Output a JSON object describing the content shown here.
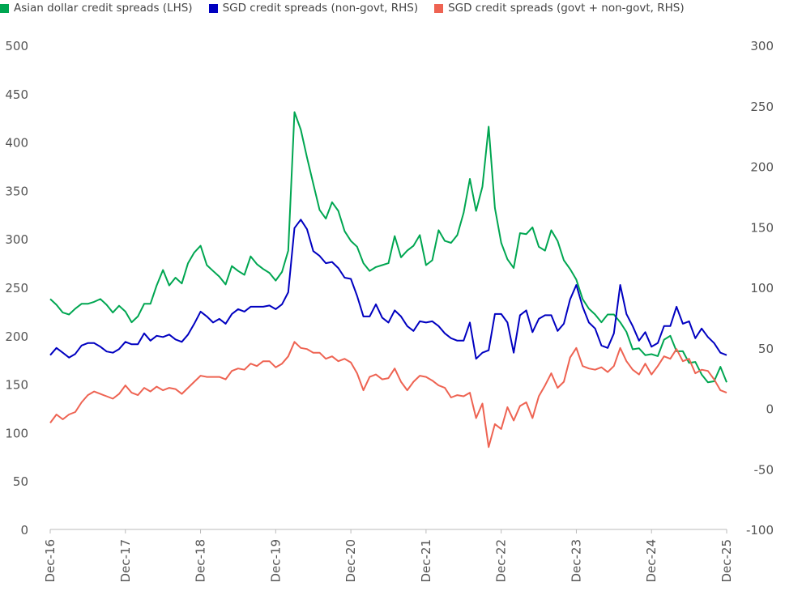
{
  "chart_data": {
    "type": "line",
    "title": "",
    "legend_position": "top",
    "grid": false,
    "y_left": {
      "range": [
        0,
        500
      ],
      "ticks": [
        0,
        50,
        100,
        150,
        200,
        250,
        300,
        350,
        400,
        450,
        500
      ]
    },
    "y_right": {
      "range": [
        -100,
        300
      ],
      "ticks": [
        -100,
        -50,
        0,
        50,
        100,
        150,
        200,
        250,
        300
      ]
    },
    "x_tick_labels": [
      "Dec-16",
      "Dec-17",
      "Dec-18",
      "Dec-19",
      "Dec-20",
      "Dec-21",
      "Dec-22",
      "Dec-23",
      "Dec-24",
      "Dec-25"
    ],
    "x": [
      "2016-12",
      "2017-01",
      "2017-02",
      "2017-03",
      "2017-04",
      "2017-05",
      "2017-06",
      "2017-07",
      "2017-08",
      "2017-09",
      "2017-10",
      "2017-11",
      "2017-12",
      "2018-01",
      "2018-02",
      "2018-03",
      "2018-04",
      "2018-05",
      "2018-06",
      "2018-07",
      "2018-08",
      "2018-09",
      "2018-10",
      "2018-11",
      "2018-12",
      "2019-01",
      "2019-02",
      "2019-03",
      "2019-04",
      "2019-05",
      "2019-06",
      "2019-07",
      "2019-08",
      "2019-09",
      "2019-10",
      "2019-11",
      "2019-12",
      "2020-01",
      "2020-02",
      "2020-03",
      "2020-04",
      "2020-05",
      "2020-06",
      "2020-07",
      "2020-08",
      "2020-09",
      "2020-10",
      "2020-11",
      "2020-12",
      "2021-01",
      "2021-02",
      "2021-03",
      "2021-04",
      "2021-05",
      "2021-06",
      "2021-07",
      "2021-08",
      "2021-09",
      "2021-10",
      "2021-11",
      "2021-12",
      "2022-01",
      "2022-02",
      "2022-03",
      "2022-04",
      "2022-05",
      "2022-06",
      "2022-07",
      "2022-08",
      "2022-09",
      "2022-10",
      "2022-11",
      "2022-12",
      "2023-01",
      "2023-02",
      "2023-03",
      "2023-04",
      "2023-05",
      "2023-06",
      "2023-07",
      "2023-08",
      "2023-09",
      "2023-10",
      "2023-11",
      "2023-12",
      "2024-01",
      "2024-02",
      "2024-03",
      "2024-04",
      "2024-05",
      "2024-06",
      "2024-07",
      "2024-08",
      "2024-09",
      "2024-10",
      "2024-11",
      "2024-12",
      "2025-01",
      "2025-02",
      "2025-03",
      "2025-04",
      "2025-05",
      "2025-06",
      "2025-07",
      "2025-08",
      "2025-09",
      "2025-10",
      "2025-11",
      "2025-12"
    ],
    "series": [
      {
        "name": "Asian dollar credit spreads (LHS)",
        "axis": "left",
        "color": "#00A651",
        "values": [
          238,
          232,
          224,
          222,
          228,
          233,
          233,
          235,
          238,
          232,
          224,
          231,
          225,
          214,
          220,
          233,
          233,
          252,
          268,
          252,
          260,
          254,
          275,
          286,
          293,
          273,
          267,
          261,
          253,
          272,
          267,
          263,
          282,
          274,
          269,
          265,
          257,
          266,
          288,
          431,
          413,
          384,
          357,
          330,
          321,
          338,
          329,
          308,
          298,
          292,
          275,
          267,
          271,
          273,
          275,
          303,
          281,
          288,
          293,
          304,
          273,
          278,
          309,
          298,
          296,
          304,
          327,
          362,
          329,
          354,
          416,
          332,
          296,
          279,
          270,
          306,
          305,
          312,
          292,
          288,
          309,
          298,
          278,
          269,
          258,
          238,
          228,
          222,
          214,
          222,
          222,
          214,
          204,
          186,
          187,
          180,
          181,
          179,
          196,
          200,
          184,
          184,
          172,
          173,
          160,
          152,
          153,
          168,
          152
        ]
      },
      {
        "name": "SGD credit spreads (non-govt, RHS)",
        "axis": "right",
        "color": "#0000C0",
        "values": [
          44,
          50,
          46,
          42,
          45,
          52,
          54,
          54,
          51,
          47,
          46,
          49,
          55,
          53,
          53,
          62,
          56,
          60,
          59,
          61,
          57,
          55,
          61,
          70,
          80,
          76,
          71,
          74,
          70,
          78,
          82,
          80,
          84,
          84,
          84,
          85,
          82,
          86,
          96,
          149,
          156,
          148,
          130,
          126,
          120,
          121,
          116,
          108,
          107,
          93,
          76,
          76,
          86,
          75,
          71,
          81,
          76,
          68,
          64,
          72,
          71,
          72,
          68,
          62,
          58,
          56,
          56,
          71,
          41,
          46,
          48,
          78,
          78,
          71,
          46,
          77,
          81,
          63,
          74,
          77,
          77,
          64,
          70,
          90,
          102,
          84,
          71,
          66,
          52,
          50,
          62,
          102,
          78,
          68,
          56,
          63,
          51,
          54,
          68,
          68,
          84,
          70,
          72,
          58,
          66,
          59,
          54,
          46,
          44
        ]
      },
      {
        "name": "SGD credit spreads (govt + non-govt, RHS)",
        "axis": "right",
        "color": "#EE6352",
        "values": [
          -12,
          -5,
          -9,
          -5,
          -3,
          5,
          11,
          14,
          12,
          10,
          8,
          12,
          19,
          13,
          11,
          17,
          14,
          18,
          15,
          17,
          16,
          12,
          17,
          22,
          27,
          26,
          26,
          26,
          24,
          31,
          33,
          32,
          37,
          35,
          39,
          39,
          34,
          37,
          43,
          55,
          50,
          49,
          46,
          46,
          41,
          43,
          39,
          41,
          38,
          29,
          15,
          26,
          28,
          24,
          25,
          33,
          22,
          15,
          22,
          27,
          26,
          23,
          19,
          17,
          9,
          11,
          10,
          13,
          -8,
          4,
          -32,
          -13,
          -17,
          1,
          -10,
          2,
          5,
          -8,
          10,
          19,
          29,
          17,
          22,
          42,
          50,
          35,
          33,
          32,
          34,
          30,
          35,
          50,
          39,
          32,
          28,
          37,
          28,
          35,
          43,
          41,
          49,
          39,
          41,
          29,
          32,
          31,
          24,
          15,
          13
        ]
      }
    ]
  }
}
